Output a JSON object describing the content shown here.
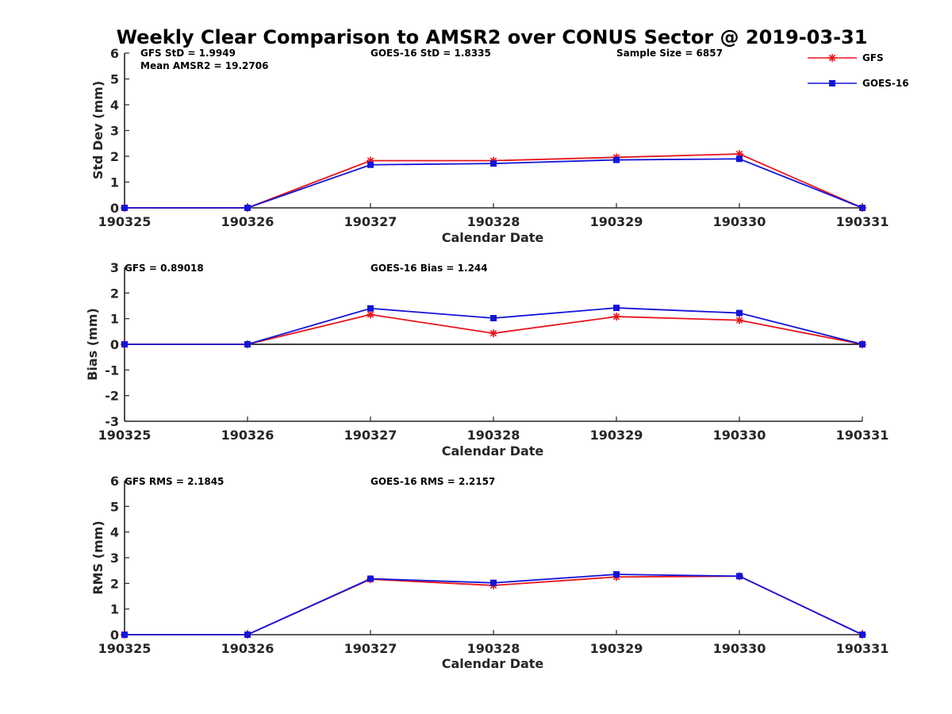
{
  "title": "Weekly Clear Comparison to AMSR2 over CONUS Sector @ 2019-03-31",
  "colors": {
    "GFS": "#e8141c",
    "GOES-16": "#1414d8",
    "axis": "#262626"
  },
  "legend": {
    "placement": "top-right",
    "entries": [
      {
        "name": "GFS",
        "marker": "asterisk",
        "color": "#e8141c"
      },
      {
        "name": "GOES-16",
        "marker": "square",
        "color": "#1414d8"
      }
    ]
  },
  "chart_data": [
    {
      "type": "line",
      "x": [
        "190325",
        "190326",
        "190327",
        "190328",
        "190329",
        "190330",
        "190331"
      ],
      "xlabel": "Calendar Date",
      "ylabel": "Std Dev (mm)",
      "ylim": [
        0,
        6
      ],
      "yticks": [
        "0",
        "1",
        "2",
        "3",
        "4",
        "5",
        "6"
      ],
      "grid": false,
      "annotations": {
        "left": "GFS StD = 1.9949",
        "left2": "Mean AMSR2 = 19.2706",
        "middle": "GOES-16 StD = 1.8335",
        "right": "Sample Size = 6857"
      },
      "series": [
        {
          "name": "GFS",
          "values": [
            0,
            0,
            1.83,
            1.83,
            1.96,
            2.09,
            0
          ]
        },
        {
          "name": "GOES-16",
          "values": [
            0,
            0,
            1.67,
            1.72,
            1.86,
            1.9,
            0
          ]
        }
      ]
    },
    {
      "type": "line",
      "x": [
        "190325",
        "190326",
        "190327",
        "190328",
        "190329",
        "190330",
        "190331"
      ],
      "xlabel": "Calendar Date",
      "ylabel": "Bias (mm)",
      "ylim": [
        -3,
        3
      ],
      "yticks": [
        "-3",
        "-2",
        "-1",
        "0",
        "1",
        "2",
        "3"
      ],
      "grid": false,
      "zero_line": true,
      "annotations": {
        "left": "GFS = 0.89018",
        "middle": "GOES-16 Bias  = 1.244"
      },
      "series": [
        {
          "name": "GFS",
          "values": [
            0,
            0,
            1.16,
            0.43,
            1.08,
            0.94,
            0
          ]
        },
        {
          "name": "GOES-16",
          "values": [
            0,
            0,
            1.4,
            1.02,
            1.42,
            1.22,
            0
          ]
        }
      ]
    },
    {
      "type": "line",
      "x": [
        "190325",
        "190326",
        "190327",
        "190328",
        "190329",
        "190330",
        "190331"
      ],
      "xlabel": "Calendar Date",
      "ylabel": "RMS (mm)",
      "ylim": [
        0,
        6
      ],
      "yticks": [
        "0",
        "1",
        "2",
        "3",
        "4",
        "5",
        "6"
      ],
      "grid": false,
      "annotations": {
        "left": "GFS RMS = 2.1845",
        "middle": "GOES-16 RMS = 2.2157"
      },
      "series": [
        {
          "name": "GFS",
          "values": [
            0,
            0,
            2.16,
            1.92,
            2.25,
            2.28,
            0
          ]
        },
        {
          "name": "GOES-16",
          "values": [
            0,
            0,
            2.18,
            2.02,
            2.35,
            2.28,
            0
          ]
        }
      ]
    }
  ]
}
